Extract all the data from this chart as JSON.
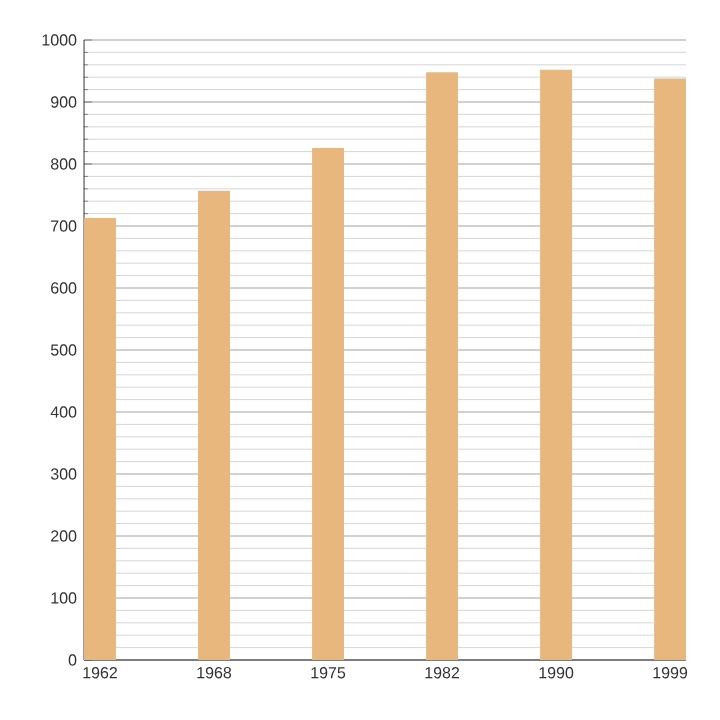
{
  "chart_data": {
    "type": "bar",
    "categories": [
      "1962",
      "1968",
      "1975",
      "1982",
      "1990",
      "1999"
    ],
    "values": [
      713,
      757,
      826,
      948,
      952,
      938
    ],
    "color": "#e8b77e",
    "ylim": [
      0,
      1000
    ],
    "yticks": [
      0,
      100,
      200,
      300,
      400,
      500,
      600,
      700,
      800,
      900,
      1000
    ],
    "grid": "y"
  }
}
